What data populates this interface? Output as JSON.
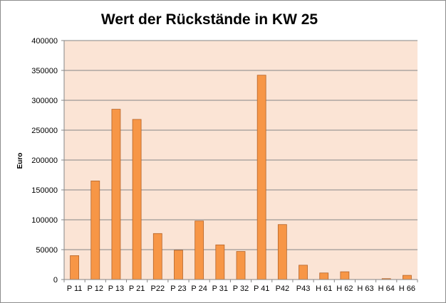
{
  "chart_data": {
    "type": "bar",
    "title": "Wert der Rückstände in KW 25",
    "xlabel": "",
    "ylabel": "Euro",
    "ylim": [
      0,
      400000
    ],
    "yticks": [
      0,
      50000,
      100000,
      150000,
      200000,
      250000,
      300000,
      350000,
      400000
    ],
    "ytick_labels": [
      "0",
      "50000",
      "100000",
      "150000",
      "200000",
      "250000",
      "300000",
      "350000",
      "400000"
    ],
    "categories": [
      "P 11",
      "P 12",
      "P 13",
      "P 21",
      "P22",
      "P 23",
      "P 24",
      "P 31",
      "P 32",
      "P 41",
      "P42",
      "P43",
      "H 61",
      "H 62",
      "H 63",
      "H 64",
      "H 66"
    ],
    "values": [
      40000,
      165000,
      285000,
      268000,
      77000,
      49000,
      98000,
      58000,
      47000,
      342000,
      92000,
      24000,
      11000,
      13000,
      0,
      1500,
      7000
    ],
    "grid": true,
    "legend": "none",
    "colors": {
      "bar_fill": "#f79646",
      "bar_stroke": "#b5642a",
      "plot_background": "#fbe4d5",
      "gridline": "#868686"
    }
  }
}
